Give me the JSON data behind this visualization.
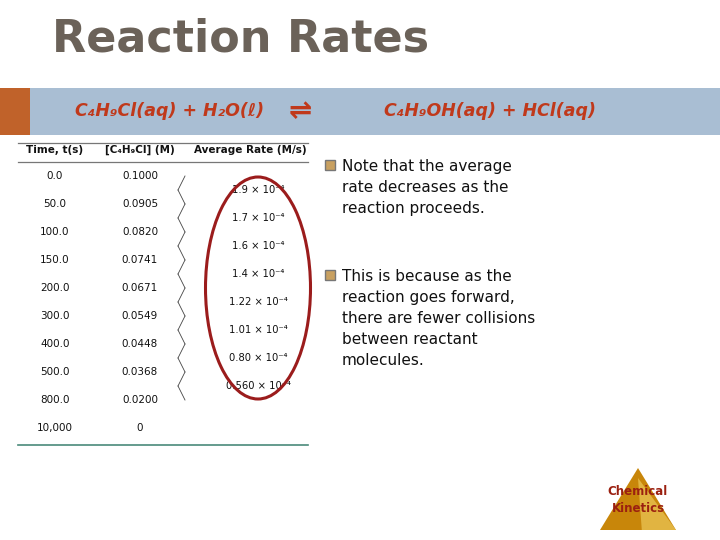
{
  "title": "Reaction Rates",
  "title_color": "#6b6259",
  "title_fontsize": 32,
  "bg_color": "#ffffff",
  "header_bar_color": "#8ca8c5",
  "header_bar_alpha": 0.75,
  "header_left_square_color": "#c0622a",
  "equation_left": "C₄H₉Cl(aq) + H₂O(ℓ)",
  "equation_right": "C₄H₉OH(aq) + HCl(aq)",
  "equation_color": "#c0391b",
  "table_header_time": "Time, t(s)",
  "table_header_conc": "[C₄H₉Cl] (M)",
  "table_header_rate": "Average Rate (M/s)",
  "table_times": [
    "0.0",
    "50.0",
    "100.0",
    "150.0",
    "200.0",
    "300.0",
    "400.0",
    "500.0",
    "800.0",
    "10,000"
  ],
  "table_conc": [
    "0.1000",
    "0.0905",
    "0.0820",
    "0.0741",
    "0.0671",
    "0.0549",
    "0.0448",
    "0.0368",
    "0.0200",
    "0"
  ],
  "table_rates": [
    "1.9 × 10⁻⁴",
    "1.7 × 10⁻⁴",
    "1.6 × 10⁻⁴",
    "1.4 × 10⁻⁴",
    "1.22 × 10⁻⁴",
    "1.01 × 10⁻⁴",
    "0.80 × 10⁻⁴",
    "0.560 × 10⁻⁴"
  ],
  "bullet1": "Note that the average\nrate decreases as the\nreaction proceeds.",
  "bullet2": "This is because as the\nreaction goes forward,\nthere are fewer collisions\nbetween reactant\nmolecules.",
  "bullet_color": "#111111",
  "bullet_square_color": "#c8a060",
  "ellipse_color": "#9b1c1c",
  "logo_color1": "#c8860a",
  "logo_color2": "#e8c050",
  "logo_text_color": "#9b2010",
  "logo_text": "Chemical\nKinetics"
}
